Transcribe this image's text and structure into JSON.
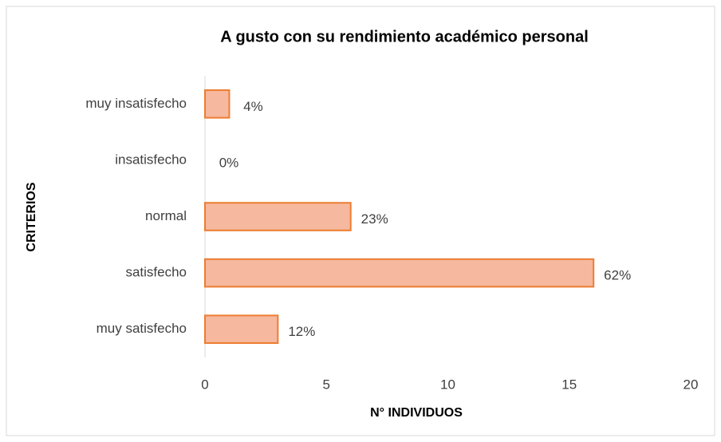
{
  "chart_data": {
    "type": "barh",
    "title": "A gusto con su rendimiento académico personal",
    "xlabel": "N° INDIVIDUOS",
    "ylabel": "CRITERIOS",
    "categories": [
      "muy insatisfecho",
      "insatisfecho",
      "normal",
      "satisfecho",
      "muy satisfecho"
    ],
    "values": [
      1,
      0,
      6,
      16,
      3
    ],
    "value_labels": [
      "4%",
      "0%",
      "23%",
      "62%",
      "12%"
    ],
    "color": "#f6b89e",
    "edge_color": "#ed7d31",
    "xlim": [
      0,
      20
    ],
    "xticks": [
      0,
      5,
      10,
      15,
      20
    ],
    "grid": false
  }
}
